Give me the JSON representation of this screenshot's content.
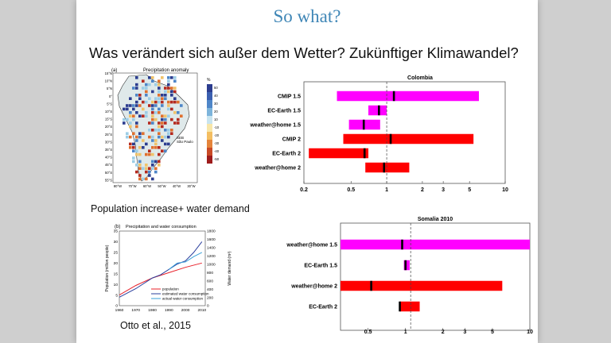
{
  "slide": {
    "title": "So what?",
    "subtitle": "Was verändert sich außer dem Wetter? Zukünftiger Klimawandel?",
    "pop_heading": "Population increase+ water demand",
    "citation": "Otto et al., 2015"
  },
  "colors": {
    "magenta": "#ff00ff",
    "red": "#ff0000",
    "title_blue": "#3f86b6"
  },
  "map": {
    "panel_label": "(a)",
    "title": "Precipitation anomaly",
    "lat_labels": [
      "15°N",
      "10°N",
      "5°N",
      "0°",
      "5°S",
      "10°S",
      "15°S",
      "20°S",
      "25°S",
      "30°S",
      "35°S",
      "40°S",
      "45°S",
      "50°S",
      "55°S"
    ],
    "lon_labels": [
      "80°W",
      "70°W",
      "60°W",
      "50°W",
      "40°W",
      "30°W"
    ],
    "colorbar_unit": "%",
    "colorbar_ticks": [
      "50",
      "40",
      "30",
      "20",
      "10",
      "-10",
      "-20",
      "-30",
      "-40",
      "-50"
    ],
    "annotations": [
      "SEB",
      "São Paulo"
    ]
  },
  "line_chart": {
    "panel_label": "(b)",
    "title": "Precipitation and water consumption",
    "ylabel_left": "Population (million people)",
    "ylabel_right": "Water demand (m³)",
    "legend": [
      "population",
      "estimated water consumption",
      "actual water consumption"
    ]
  },
  "chart_data": [
    {
      "type": "line",
      "title": "Precipitation and water consumption",
      "x_ticks": [
        "1960",
        "1970",
        "1980",
        "1990",
        "2000",
        "2010"
      ],
      "y_ticks_left": [
        "0",
        "5",
        "10",
        "15",
        "20",
        "25",
        "30",
        "35"
      ],
      "y_ticks_right": [
        "0",
        "200",
        "400",
        "600",
        "800",
        "1000",
        "1200",
        "1400",
        "1600",
        "1800"
      ],
      "xlim": [
        1960,
        2012
      ],
      "ylim": [
        0,
        35
      ],
      "series": [
        {
          "name": "population",
          "color": "#e8202a",
          "x": [
            1960,
            1970,
            1980,
            1990,
            2000,
            2010
          ],
          "y": [
            5,
            9.5,
            13,
            15.5,
            18,
            20
          ]
        },
        {
          "name": "estimated water consumption",
          "color": "#2b3f9e",
          "x": [
            1960,
            1970,
            1980,
            1985,
            1990,
            1995,
            2000,
            2005,
            2010
          ],
          "y": [
            4,
            8,
            13,
            14.5,
            17,
            19.5,
            21,
            25,
            30
          ]
        },
        {
          "name": "actual water consumption",
          "color": "#3aa0d8",
          "x": [
            1990,
            1995,
            2000,
            2005,
            2010
          ],
          "y": [
            17,
            20,
            20.5,
            23,
            25
          ]
        }
      ]
    },
    {
      "type": "bar",
      "title": "Colombia",
      "x_scale": "log",
      "xlim": [
        0.2,
        10
      ],
      "x_ticks": [
        "0.2",
        "0.5",
        "1",
        "2",
        "3",
        "5",
        "10"
      ],
      "categories": [
        "CMIP 1.5",
        "EC-Earth 1.5",
        "weather@home 1.5",
        "CMIP 2",
        "EC-Earth 2",
        "weather@home 2"
      ],
      "ranges": [
        [
          0.38,
          6.0
        ],
        [
          0.7,
          1.0
        ],
        [
          0.48,
          0.88
        ],
        [
          0.43,
          5.4
        ],
        [
          0.22,
          0.7
        ],
        [
          0.66,
          1.55
        ]
      ],
      "best": [
        1.15,
        0.86,
        0.64,
        1.08,
        0.65,
        0.95
      ],
      "colors": [
        "#ff00ff",
        "#ff00ff",
        "#ff00ff",
        "#ff0000",
        "#ff0000",
        "#ff0000"
      ],
      "reference": 1
    },
    {
      "type": "bar",
      "title": "Somalia 2010",
      "x_scale": "log",
      "xlim": [
        0.3,
        10
      ],
      "x_ticks": [
        "0.5",
        "1",
        "2",
        "3",
        "5",
        "10"
      ],
      "categories": [
        "weather@home 1.5",
        "EC-Earth 1.5",
        "weather@home 2",
        "EC-Earth 2"
      ],
      "ranges": [
        [
          0.3,
          10.0
        ],
        [
          0.97,
          1.08
        ],
        [
          0.3,
          6.0
        ],
        [
          0.9,
          1.3
        ]
      ],
      "best": [
        0.94,
        1.0,
        0.53,
        0.9
      ],
      "colors": [
        "#ff00ff",
        "#ff00ff",
        "#ff0000",
        "#ff0000"
      ],
      "reference": 1.1
    }
  ]
}
